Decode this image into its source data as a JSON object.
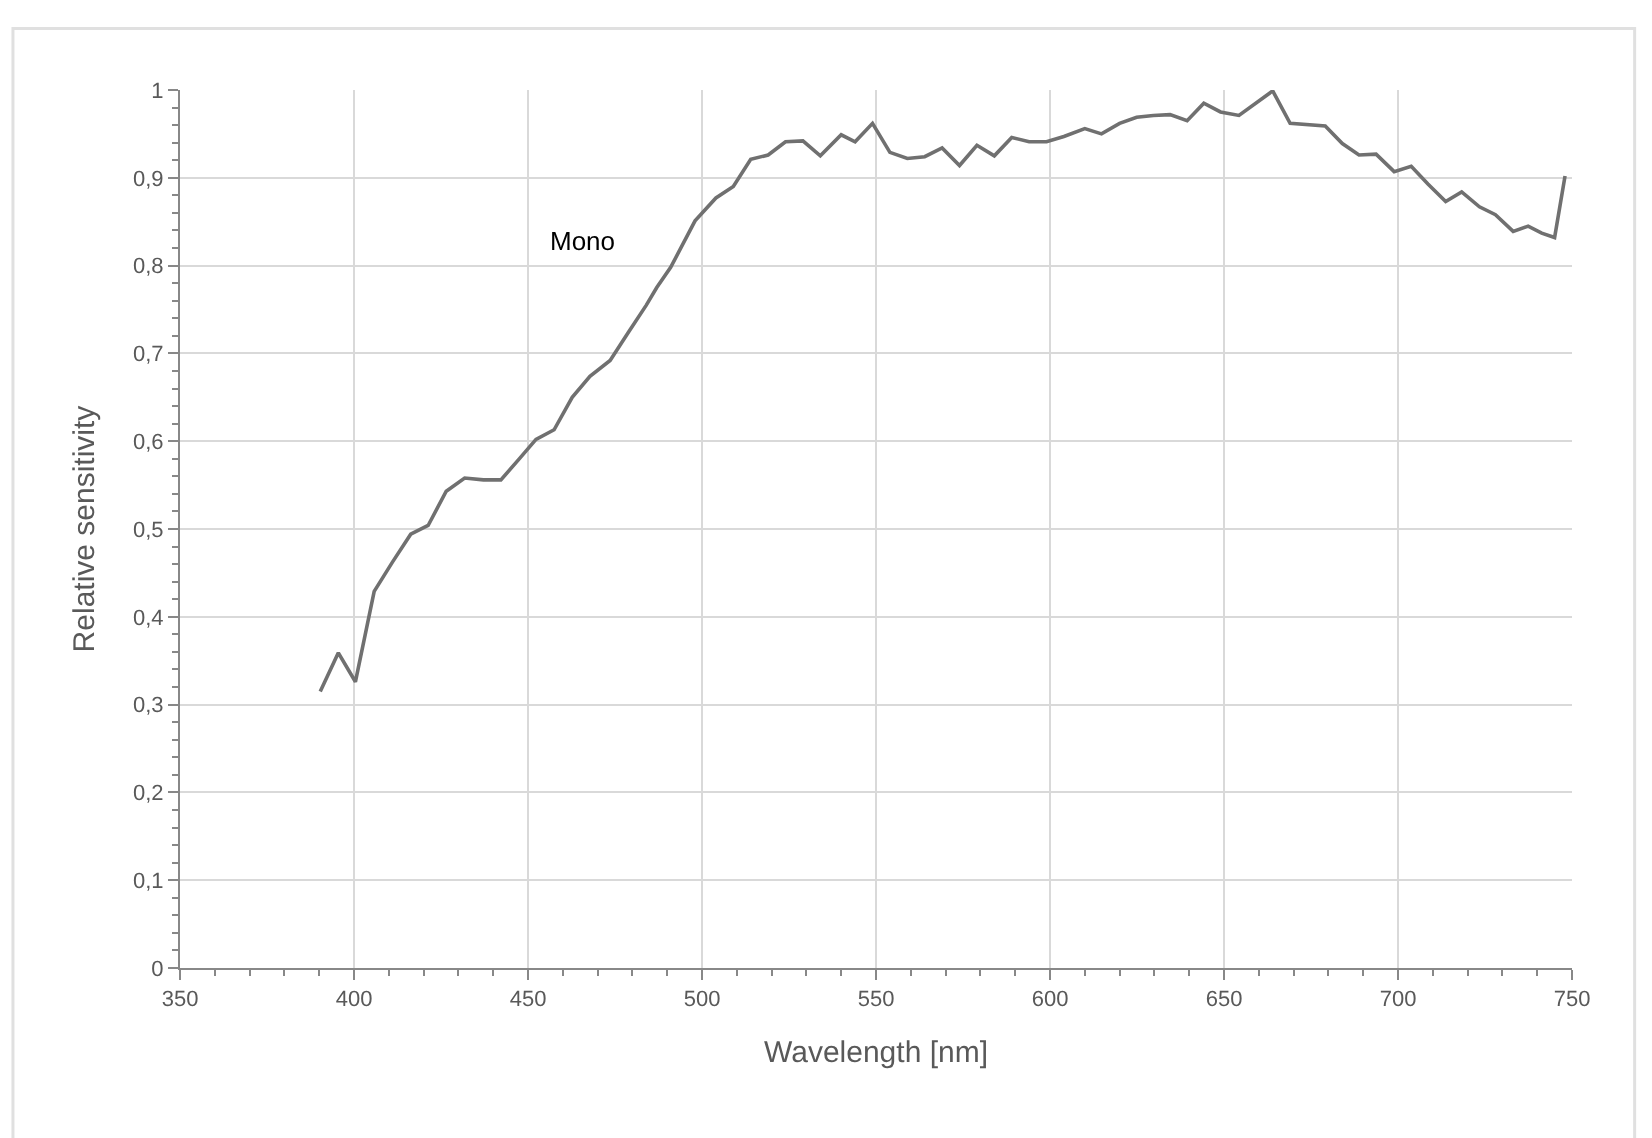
{
  "chart_data": {
    "type": "line",
    "xlabel": "Wavelength [nm]",
    "ylabel": "Relative sensitivity",
    "series": [
      {
        "name": "Mono",
        "color": "#707070",
        "x": [
          390.3,
          395.5,
          400.4,
          405.8,
          411,
          416.3,
          421.3,
          426.5,
          431.8,
          437.2,
          442.2,
          447.3,
          452.3,
          457.5,
          462.7,
          467.8,
          473.6,
          479,
          484,
          487,
          491,
          498,
          504,
          509,
          514,
          519,
          524,
          529,
          534,
          540,
          544,
          549,
          554,
          559,
          564,
          569,
          574,
          579,
          584,
          589,
          594,
          599,
          604,
          610,
          614.8,
          620,
          624.9,
          629.7,
          634.5,
          639.4,
          644.2,
          649,
          654.3,
          664,
          669,
          679.1,
          684,
          688.8,
          693.7,
          698.9,
          703.8,
          708.6,
          713.7,
          718.3,
          723.4,
          728,
          733.1,
          737.4,
          741.3,
          745,
          748
        ],
        "values": [
          0.315,
          0.359,
          0.326,
          0.429,
          0.462,
          0.494,
          0.504,
          0.543,
          0.558,
          0.556,
          0.556,
          0.579,
          0.602,
          0.613,
          0.65,
          0.674,
          0.692,
          0.725,
          0.755,
          0.775,
          0.798,
          0.851,
          0.877,
          0.89,
          0.921,
          0.926,
          0.941,
          0.942,
          0.925,
          0.949,
          0.941,
          0.962,
          0.929,
          0.922,
          0.924,
          0.934,
          0.914,
          0.937,
          0.925,
          0.946,
          0.941,
          0.941,
          0.947,
          0.956,
          0.95,
          0.962,
          0.969,
          0.971,
          0.972,
          0.965,
          0.985,
          0.975,
          0.971,
          0.999,
          0.962,
          0.959,
          0.939,
          0.926,
          0.927,
          0.907,
          0.913,
          0.893,
          0.873,
          0.884,
          0.867,
          0.858,
          0.839,
          0.845,
          0.837,
          0.832,
          0.902
        ]
      }
    ],
    "xlim": [
      350,
      750
    ],
    "xticks": [
      350,
      400,
      450,
      500,
      550,
      600,
      650,
      700,
      750
    ],
    "ylim": [
      0,
      1
    ],
    "yticks": [
      {
        "value": 0,
        "label": "0"
      },
      {
        "value": 0.1,
        "label": "0,1"
      },
      {
        "value": 0.2,
        "label": "0,2"
      },
      {
        "value": 0.3,
        "label": "0,3"
      },
      {
        "value": 0.4,
        "label": "0,4"
      },
      {
        "value": 0.5,
        "label": "0,5"
      },
      {
        "value": 0.6,
        "label": "0,6"
      },
      {
        "value": 0.7,
        "label": "0,7"
      },
      {
        "value": 0.8,
        "label": "0,8"
      },
      {
        "value": 0.9,
        "label": "0,9"
      },
      {
        "value": 1,
        "label": "1"
      }
    ],
    "grid": true,
    "legend": false,
    "marker": "none",
    "line_style": "solid"
  }
}
